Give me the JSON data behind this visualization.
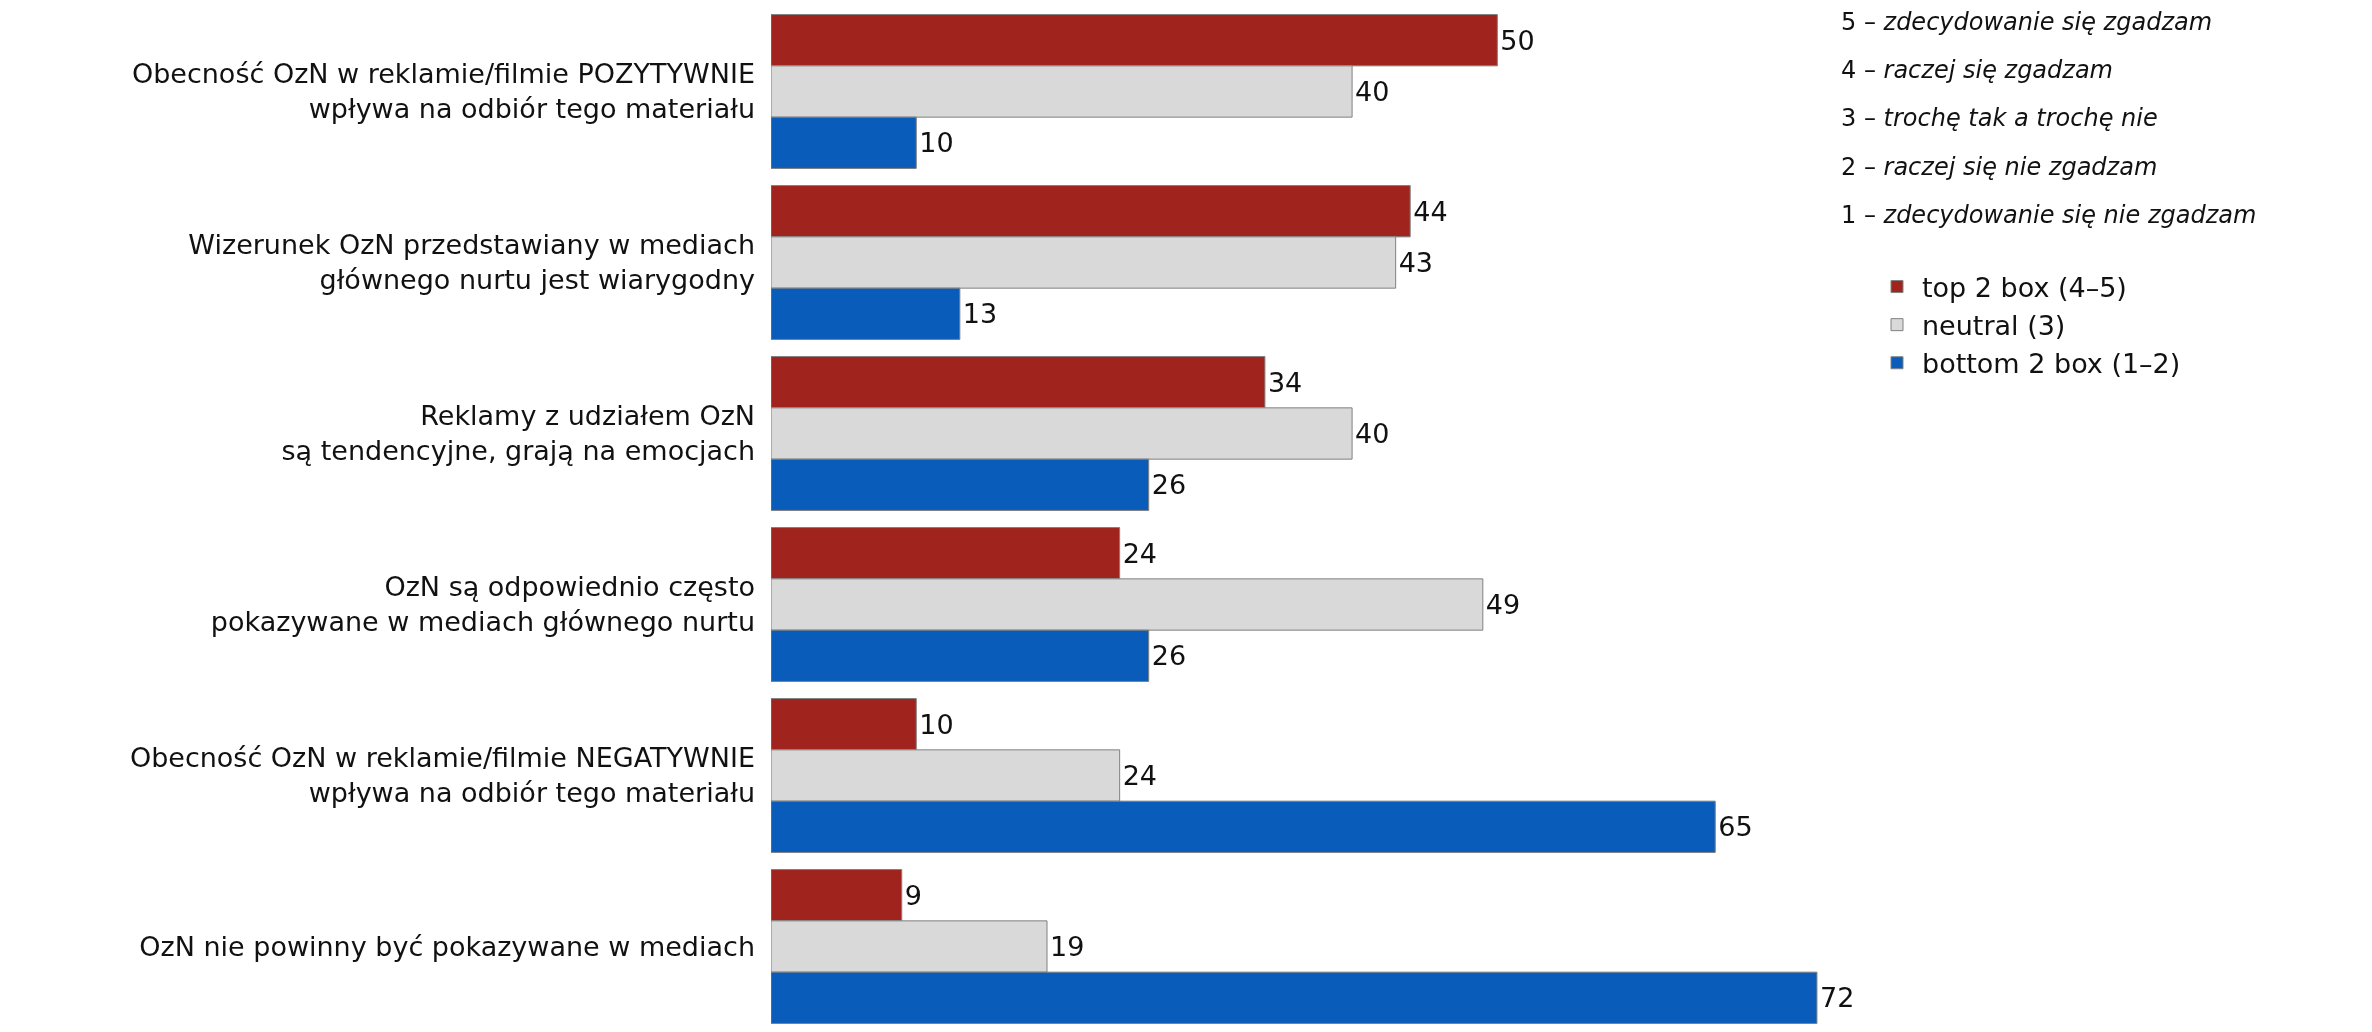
{
  "chart_data": {
    "type": "bar",
    "orientation": "horizontal",
    "categories": [
      "Obecność OzN w reklamie/filmie POZYTYWNIE\nwpływa na odbiór tego materiału",
      "Wizerunek OzN przedstawiany w mediach\ngłównego nurtu jest wiarygodny",
      "Reklamy z udziałem OzN\nsą tendencyjne, grają na emocjach",
      "OzN są odpowiednio często\npokazywane w mediach głównego nurtu",
      "Obecność OzN w reklamie/filmie NEGATYWNIE\nwpływa na odbiór tego materiału",
      "OzN nie powinny być pokazywane w mediach"
    ],
    "series": [
      {
        "name": "top 2 box (4–5)",
        "color": "#a0241d",
        "values": [
          50,
          44,
          34,
          24,
          10,
          9
        ]
      },
      {
        "name": "neutral (3)",
        "color": "#d9d9d9",
        "values": [
          40,
          43,
          40,
          49,
          24,
          19
        ]
      },
      {
        "name": "bottom 2 box (1–2)",
        "color": "#0a5cba",
        "values": [
          10,
          13,
          26,
          26,
          65,
          72
        ]
      }
    ],
    "annotations": [
      "5 – zdecydowanie się zgadzam",
      "4 – raczej się zgadzam",
      "3 – trochę tak a trochę nie",
      "2 – raczej się nie zgadzam",
      "1 – zdecydowanie się nie zgadzam"
    ],
    "data_labels": true,
    "legend": "top right"
  }
}
